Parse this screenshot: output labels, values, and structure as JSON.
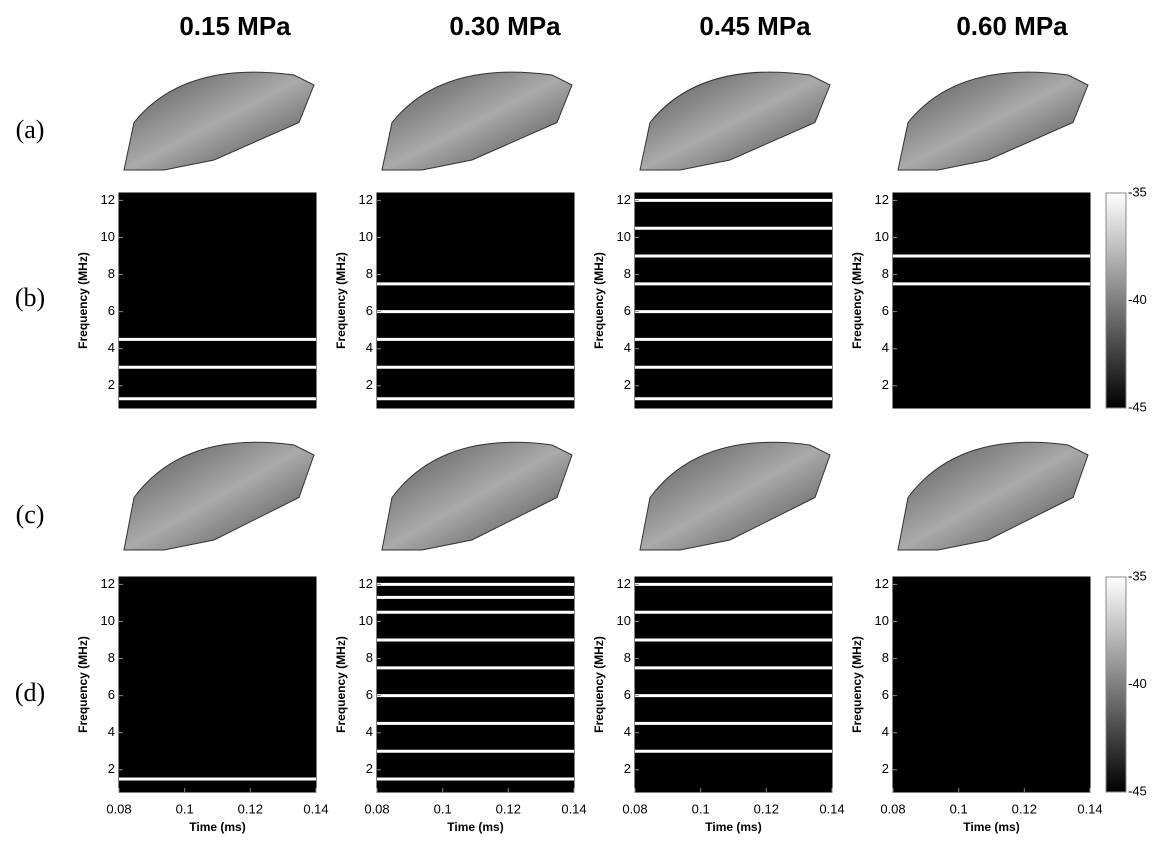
{
  "column_titles": [
    "0.15 MPa",
    "0.30 MPa",
    "0.45 MPa",
    "0.60 MPa"
  ],
  "row_labels": [
    "(a)",
    "(b)",
    "(c)",
    "(d)"
  ],
  "chart_data": [
    {
      "type": "spectrogram",
      "ylabel": "Frequency (MHz)",
      "ylim": [
        0.8,
        12.4
      ],
      "yticks": [
        2,
        4,
        6,
        8,
        10,
        12
      ],
      "bands": [
        1.3,
        3.0,
        4.5
      ]
    },
    {
      "type": "spectrogram",
      "ylabel": "Frequency (MHz)",
      "ylim": [
        0.8,
        12.4
      ],
      "yticks": [
        2,
        4,
        6,
        8,
        10,
        12
      ],
      "bands": [
        1.3,
        3.0,
        4.5,
        6.0,
        7.5
      ]
    },
    {
      "type": "spectrogram",
      "ylabel": "Frequency (MHz)",
      "ylim": [
        0.8,
        12.4
      ],
      "yticks": [
        2,
        4,
        6,
        8,
        10,
        12
      ],
      "bands": [
        1.3,
        3.0,
        4.5,
        6.0,
        7.5,
        9.0,
        10.5,
        12.0
      ]
    },
    {
      "type": "spectrogram",
      "ylabel": "Frequency (MHz)",
      "ylim": [
        0.8,
        12.4
      ],
      "yticks": [
        2,
        4,
        6,
        8,
        10,
        12
      ],
      "bands": [
        7.5,
        9.0
      ],
      "colorbar": {
        "lim": [
          -45,
          -35
        ],
        "ticks": [
          -35,
          -40,
          -45
        ]
      }
    },
    {
      "type": "spectrogram",
      "ylabel": "Frequency (MHz)",
      "xlabel": "Time (ms)",
      "ylim": [
        0.8,
        12.4
      ],
      "yticks": [
        2,
        4,
        6,
        8,
        10,
        12
      ],
      "xlim": [
        0.08,
        0.14
      ],
      "xticks": [
        0.08,
        0.1,
        0.12,
        0.14
      ],
      "bands": [
        1.5
      ]
    },
    {
      "type": "spectrogram",
      "ylabel": "Frequency (MHz)",
      "xlabel": "Time (ms)",
      "ylim": [
        0.8,
        12.4
      ],
      "yticks": [
        2,
        4,
        6,
        8,
        10,
        12
      ],
      "xlim": [
        0.08,
        0.14
      ],
      "xticks": [
        0.08,
        0.1,
        0.12,
        0.14
      ],
      "bands": [
        1.5,
        3.0,
        4.5,
        6.0,
        7.5,
        9.0,
        10.5,
        11.3,
        12.0
      ]
    },
    {
      "type": "spectrogram",
      "ylabel": "Frequency (MHz)",
      "xlabel": "Time (ms)",
      "ylim": [
        0.8,
        12.4
      ],
      "yticks": [
        2,
        4,
        6,
        8,
        10,
        12
      ],
      "xlim": [
        0.08,
        0.14
      ],
      "xticks": [
        0.08,
        0.1,
        0.12,
        0.14
      ],
      "bands": [
        3.0,
        4.5,
        6.0,
        7.5,
        9.0,
        10.5,
        12.0
      ]
    },
    {
      "type": "spectrogram",
      "ylabel": "Frequency (MHz)",
      "xlabel": "Time (ms)",
      "ylim": [
        0.8,
        12.4
      ],
      "yticks": [
        2,
        4,
        6,
        8,
        10,
        12
      ],
      "xlim": [
        0.08,
        0.14
      ],
      "xticks": [
        0.08,
        0.1,
        0.12,
        0.14
      ],
      "colorbar": {
        "lim": [
          -45,
          -35
        ],
        "ticks": [
          -35,
          -40,
          -45
        ]
      }
    }
  ]
}
